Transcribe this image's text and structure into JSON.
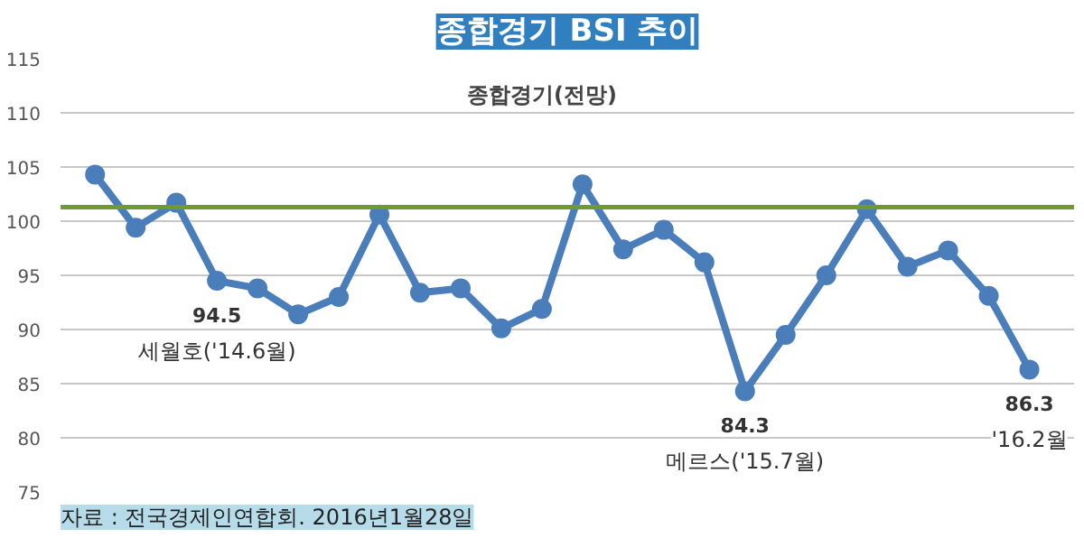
{
  "chart_data": {
    "type": "line",
    "title": "종합경기 BSI 추이",
    "categories": [
      null,
      null,
      null,
      null,
      null,
      null,
      null,
      null,
      null,
      null,
      null,
      null,
      null,
      null,
      null,
      null,
      null,
      null,
      null,
      null,
      null,
      null,
      null,
      null
    ],
    "series": [
      {
        "name": "종합경기(전망)",
        "color": "#4a7ebb",
        "values": [
          104.3,
          99.4,
          101.7,
          94.5,
          93.8,
          91.4,
          93.0,
          100.6,
          93.4,
          93.8,
          90.1,
          91.9,
          103.4,
          97.4,
          99.2,
          96.2,
          84.3,
          89.5,
          95.0,
          101.1,
          95.8,
          97.3,
          93.1,
          86.3
        ],
        "value_labels": [
          null,
          null,
          null,
          "94.5",
          null,
          null,
          null,
          null,
          null,
          null,
          null,
          null,
          null,
          null,
          null,
          null,
          "84.3",
          null,
          null,
          null,
          null,
          null,
          null,
          "86.3"
        ]
      }
    ],
    "ylim": [
      75,
      115
    ],
    "yticks": [
      75,
      80,
      85,
      90,
      95,
      100,
      105,
      110,
      115
    ],
    "grid": "y",
    "marker": "circle",
    "line_style": "solid",
    "ref_lines": [
      {
        "axis": "y",
        "value": 101.3,
        "color": "#6f9a2f"
      }
    ],
    "annotations": [
      "세월호('14.6월)",
      "메르스('15.7월)",
      "'16.2월",
      "자료 : 전국경제인연합회. 2016년1월28일"
    ]
  }
}
